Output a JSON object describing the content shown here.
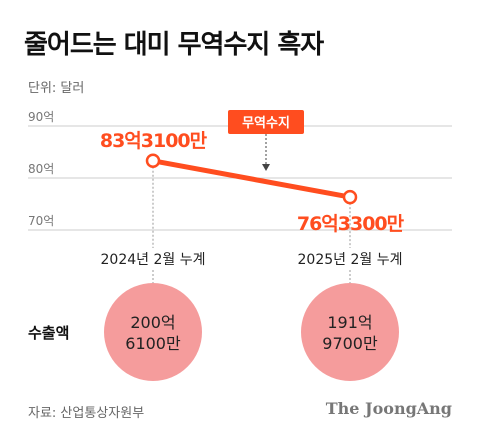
{
  "title": "줄어드는 대미 무역수지 흑자",
  "unit_label": "단위: 달러",
  "source_label": "자료: 산업통상자원부",
  "brand": "The JoongAng",
  "colors": {
    "accent": "#ff4d1f",
    "circle": "#f59c9c",
    "grid": "#cccccc",
    "axis_text": "#777777"
  },
  "chart_data": {
    "type": "line",
    "series_label": "무역수지",
    "yticks": [
      {
        "value": 90,
        "label": "90억"
      },
      {
        "value": 80,
        "label": "80억"
      },
      {
        "value": 70,
        "label": "70억"
      }
    ],
    "ylim": [
      70,
      90
    ],
    "points": [
      {
        "category": "2024년 2월 누계",
        "value": 83.31,
        "label": "83억3100만"
      },
      {
        "category": "2025년 2월 누계",
        "value": 76.33,
        "label": "76억3300만"
      }
    ],
    "exports": {
      "label": "수출액",
      "values": [
        {
          "line1": "200억",
          "line2": "6100만",
          "value": 200.61
        },
        {
          "line1": "191억",
          "line2": "9700만",
          "value": 191.97
        }
      ]
    }
  }
}
